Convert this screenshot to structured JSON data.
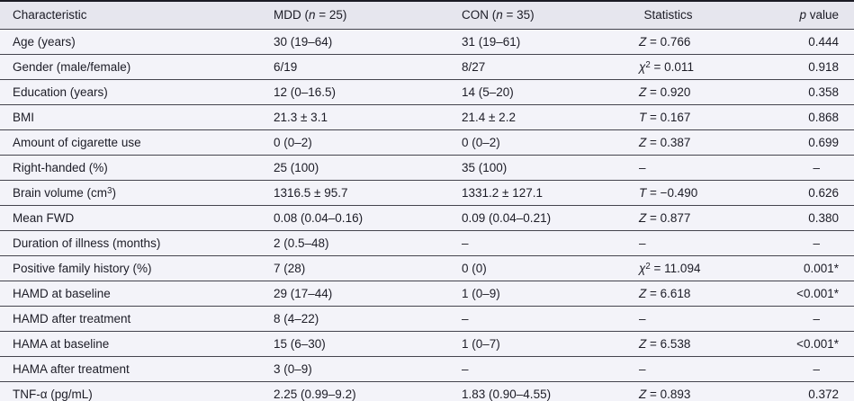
{
  "table": {
    "columns": [
      {
        "key": "characteristic",
        "label": "Characteristic"
      },
      {
        "key": "mdd",
        "label": "MDD ({i}n{/i} = 25)"
      },
      {
        "key": "con",
        "label": "CON ({i}n{/i} = 35)"
      },
      {
        "key": "statistics",
        "label": "Statistics"
      },
      {
        "key": "p-value",
        "label": "{i}p{/i} value"
      }
    ],
    "rows": [
      [
        "Age (years)",
        "30 (19–64)",
        "31 (19–61)",
        "{i}Z{/i} = 0.766",
        "0.444"
      ],
      [
        "Gender (male/female)",
        "6/19",
        "8/27",
        "{i}χ{/i}{sup}2{/sup} = 0.011",
        "0.918"
      ],
      [
        "Education (years)",
        "12 (0–16.5)",
        "14 (5–20)",
        "{i}Z{/i} = 0.920",
        "0.358"
      ],
      [
        "BMI",
        "21.3 ± 3.1",
        "21.4 ± 2.2",
        "{i}T{/i} = 0.167",
        "0.868"
      ],
      [
        "Amount of cigarette use",
        "0 (0–2)",
        "0 (0–2)",
        "{i}Z{/i} = 0.387",
        "0.699"
      ],
      [
        "Right-handed (%)",
        "25 (100)",
        "35 (100)",
        "–",
        "–"
      ],
      [
        "Brain volume (cm{sup}3{/sup})",
        "1316.5 ± 95.7",
        "1331.2 ± 127.1",
        "{i}T{/i} = −0.490",
        "0.626"
      ],
      [
        "Mean FWD",
        "0.08 (0.04–0.16)",
        "0.09 (0.04–0.21)",
        "{i}Z{/i} = 0.877",
        "0.380"
      ],
      [
        "Duration of illness (months)",
        "2 (0.5–48)",
        "–",
        "–",
        "–"
      ],
      [
        "Positive family history (%)",
        "7 (28)",
        "0 (0)",
        "{i}χ{/i}{sup}2{/sup} = 11.094",
        "0.001*"
      ],
      [
        "HAMD at baseline",
        "29 (17–44)",
        "1 (0–9)",
        "{i}Z{/i} = 6.618",
        "<0.001*"
      ],
      [
        "HAMD after treatment",
        "8 (4–22)",
        "–",
        "–",
        "–"
      ],
      [
        "HAMA at baseline",
        "15 (6–30)",
        "1 (0–7)",
        "{i}Z{/i} = 6.538",
        "<0.001*"
      ],
      [
        "HAMA after treatment",
        "3 (0–9)",
        "–",
        "–",
        "–"
      ],
      [
        "TNF-α (pg/mL)",
        "2.25 (0.99–9.2)",
        "1.83 (0.90–4.55)",
        "{i}Z{/i} = 0.893",
        "0.372"
      ]
    ],
    "empty_cell_marker": "–"
  },
  "colors": {
    "header_background": "#e6e6ee",
    "row_background": "#f3f3f9",
    "row_border": "#44444e",
    "outer_border": "#1c2130",
    "text": "#1c1c26"
  }
}
